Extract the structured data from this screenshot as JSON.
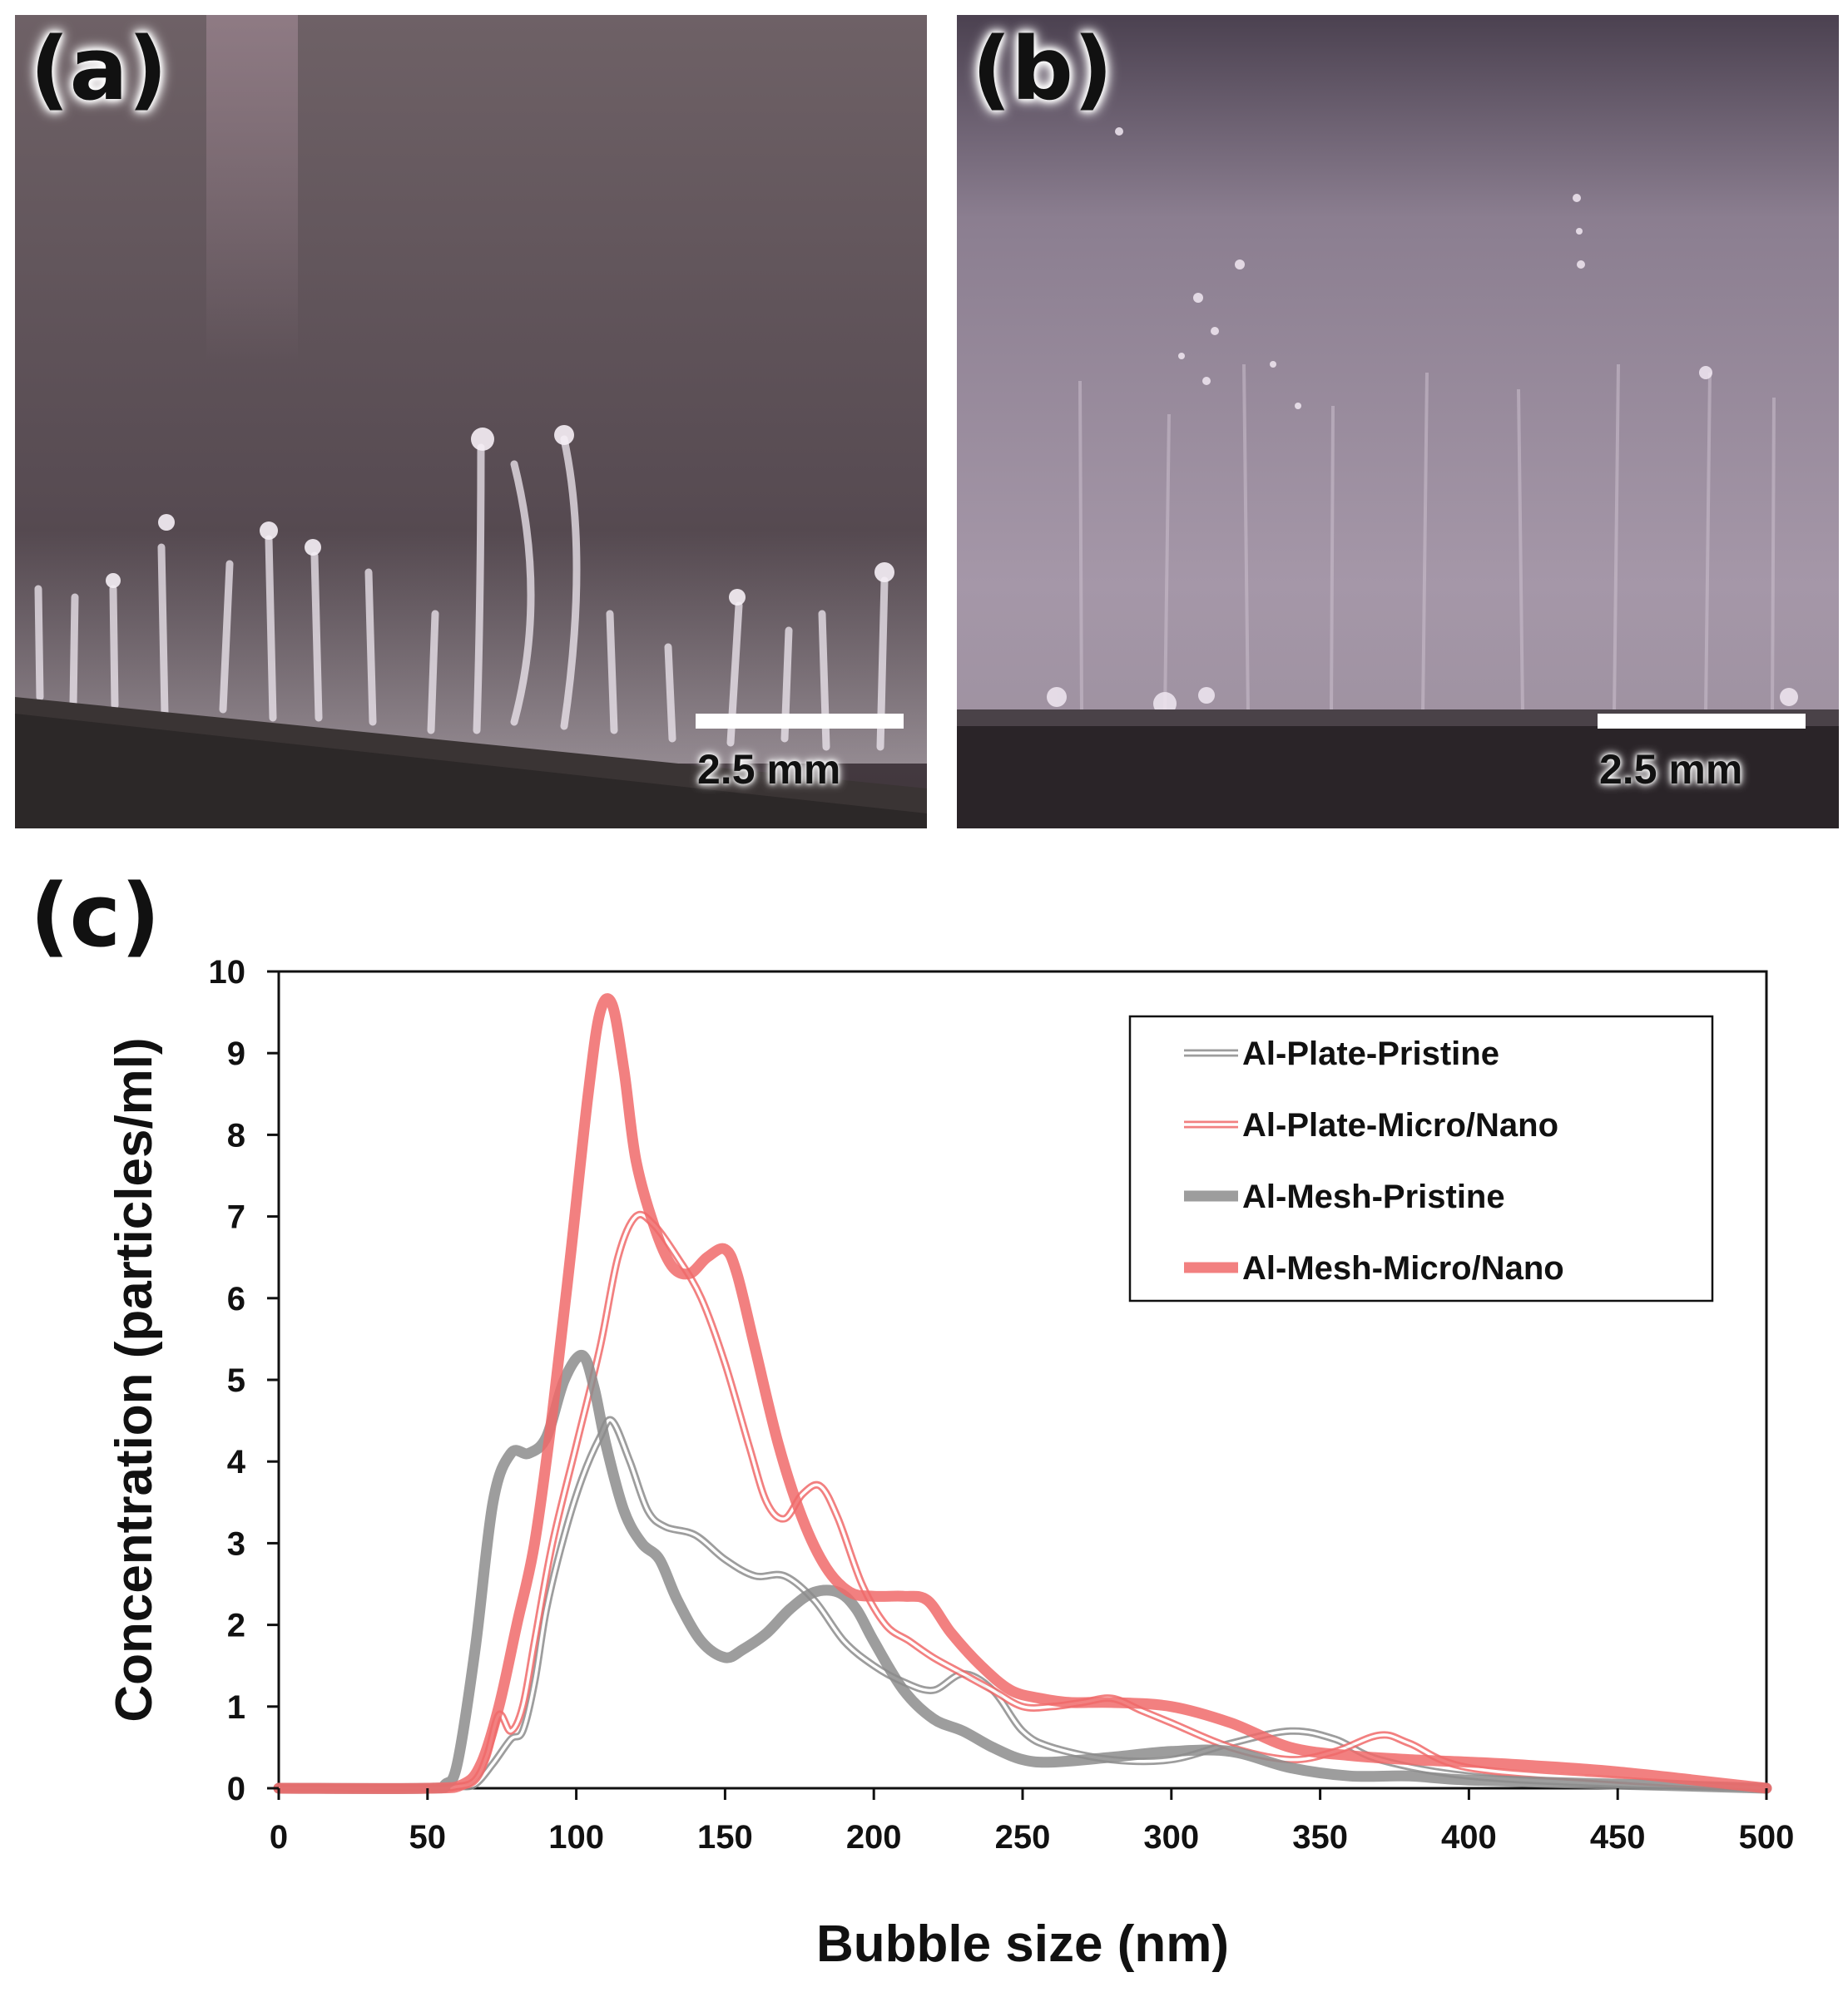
{
  "panels": {
    "a": {
      "label": "(a)",
      "scale_label": "2.5 mm"
    },
    "b": {
      "label": "(b)",
      "scale_label": "2.5 mm"
    },
    "c": {
      "label": "(c)"
    }
  },
  "colors": {
    "gray": "#8c8c8c",
    "red": "#f06a6a"
  },
  "chart_data": {
    "type": "line",
    "title": "",
    "xlabel": "Bubble size (nm)",
    "ylabel": "Concentration (particles/ml)",
    "xlim": [
      0,
      500
    ],
    "ylim": [
      0,
      10
    ],
    "x_ticks": [
      0,
      50,
      100,
      150,
      200,
      250,
      300,
      350,
      400,
      450,
      500
    ],
    "y_ticks": [
      0,
      1,
      2,
      3,
      4,
      5,
      6,
      7,
      8,
      9,
      10
    ],
    "grid": false,
    "legend_position": "top-right",
    "series": [
      {
        "name": "Al-Plate-Pristine",
        "color": "#8c8c8c",
        "style": "double-thin",
        "x": [
          0,
          50,
          60,
          66,
          72,
          78,
          82,
          86,
          90,
          96,
          102,
          108,
          112,
          118,
          124,
          130,
          140,
          150,
          160,
          170,
          180,
          190,
          200,
          210,
          220,
          230,
          240,
          250,
          260,
          280,
          300,
          320,
          340,
          355,
          370,
          400,
          450,
          500
        ],
        "values": [
          0,
          0,
          0.02,
          0.05,
          0.3,
          0.6,
          0.7,
          1.3,
          2.2,
          3.1,
          3.8,
          4.3,
          4.5,
          4.0,
          3.4,
          3.2,
          3.1,
          2.8,
          2.6,
          2.6,
          2.3,
          1.8,
          1.5,
          1.3,
          1.2,
          1.4,
          1.2,
          0.7,
          0.5,
          0.35,
          0.35,
          0.55,
          0.7,
          0.6,
          0.35,
          0.15,
          0.05,
          0
        ]
      },
      {
        "name": "Al-Plate-Micro/Nano",
        "color": "#f06a6a",
        "style": "double-thin",
        "x": [
          0,
          50,
          60,
          66,
          70,
          74,
          78,
          82,
          86,
          92,
          100,
          108,
          114,
          120,
          126,
          134,
          142,
          150,
          158,
          164,
          170,
          176,
          182,
          188,
          196,
          204,
          212,
          220,
          230,
          240,
          250,
          260,
          270,
          280,
          290,
          300,
          320,
          340,
          355,
          370,
          380,
          400,
          450,
          500
        ],
        "values": [
          0,
          0,
          0.02,
          0.1,
          0.4,
          0.9,
          0.7,
          1.0,
          1.8,
          3.0,
          4.2,
          5.4,
          6.5,
          7.0,
          6.9,
          6.5,
          6.0,
          5.2,
          4.2,
          3.5,
          3.3,
          3.6,
          3.7,
          3.3,
          2.5,
          2.0,
          1.8,
          1.6,
          1.4,
          1.2,
          1.0,
          1.0,
          1.05,
          1.1,
          0.95,
          0.8,
          0.5,
          0.35,
          0.45,
          0.65,
          0.55,
          0.25,
          0.1,
          0
        ]
      },
      {
        "name": "Al-Mesh-Pristine",
        "color": "#8c8c8c",
        "style": "thick",
        "x": [
          0,
          50,
          56,
          60,
          66,
          72,
          78,
          84,
          90,
          96,
          102,
          106,
          110,
          116,
          122,
          128,
          134,
          142,
          150,
          156,
          164,
          172,
          180,
          188,
          194,
          200,
          210,
          220,
          230,
          240,
          250,
          260,
          280,
          300,
          320,
          340,
          360,
          380,
          400,
          450,
          500
        ],
        "values": [
          0,
          0,
          0.05,
          0.3,
          1.7,
          3.5,
          4.1,
          4.1,
          4.3,
          5.0,
          5.3,
          4.9,
          4.2,
          3.4,
          3.0,
          2.8,
          2.3,
          1.8,
          1.6,
          1.7,
          1.9,
          2.2,
          2.4,
          2.4,
          2.2,
          1.8,
          1.2,
          0.85,
          0.7,
          0.5,
          0.35,
          0.32,
          0.38,
          0.45,
          0.45,
          0.25,
          0.15,
          0.15,
          0.1,
          0.05,
          0
        ]
      },
      {
        "name": "Al-Mesh-Micro/Nano",
        "color": "#f06a6a",
        "style": "thick",
        "x": [
          0,
          50,
          62,
          68,
          74,
          80,
          86,
          92,
          98,
          104,
          108,
          112,
          116,
          120,
          126,
          132,
          138,
          144,
          150,
          154,
          160,
          168,
          176,
          184,
          192,
          200,
          210,
          218,
          226,
          236,
          246,
          256,
          266,
          280,
          300,
          320,
          340,
          360,
          380,
          400,
          420,
          450,
          500
        ],
        "values": [
          0,
          0,
          0.05,
          0.3,
          1.0,
          2.0,
          3.0,
          4.6,
          6.5,
          8.5,
          9.5,
          9.6,
          8.8,
          7.7,
          6.9,
          6.4,
          6.3,
          6.5,
          6.6,
          6.3,
          5.4,
          4.2,
          3.3,
          2.7,
          2.4,
          2.35,
          2.35,
          2.3,
          1.9,
          1.5,
          1.2,
          1.1,
          1.05,
          1.05,
          1.0,
          0.8,
          0.5,
          0.4,
          0.35,
          0.32,
          0.28,
          0.2,
          0
        ]
      }
    ]
  }
}
